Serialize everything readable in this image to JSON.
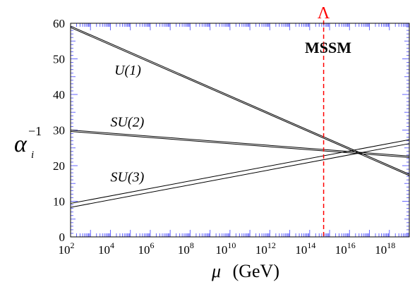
{
  "chart_data": {
    "type": "line",
    "title": "",
    "model_label": "MSSM",
    "xlabel": {
      "symbol": "μ",
      "unit": "(GeV)"
    },
    "ylabel": {
      "symbol": "α",
      "subscript": "i",
      "superscript": "−1"
    },
    "x_scale": "log10",
    "xlim_exponent": [
      2,
      19
    ],
    "ylim": [
      0,
      60
    ],
    "x_ticks": [
      {
        "base": "10",
        "exp": "2",
        "value": 2
      },
      {
        "base": "10",
        "exp": "4",
        "value": 4
      },
      {
        "base": "10",
        "exp": "6",
        "value": 6
      },
      {
        "base": "10",
        "exp": "8",
        "value": 8
      },
      {
        "base": "10",
        "exp": "10",
        "value": 10
      },
      {
        "base": "10",
        "exp": "12",
        "value": 12
      },
      {
        "base": "10",
        "exp": "14",
        "value": 14
      },
      {
        "base": "10",
        "exp": "16",
        "value": 16
      },
      {
        "base": "10",
        "exp": "18",
        "value": 18
      }
    ],
    "y_ticks": [
      "0",
      "10",
      "20",
      "30",
      "40",
      "50",
      "60"
    ],
    "series": [
      {
        "name": "U(1)",
        "lines": [
          {
            "points": [
              [
                2,
                58.8
              ],
              [
                19,
                17.2
              ]
            ]
          },
          {
            "points": [
              [
                2,
                59.2
              ],
              [
                19,
                17.6
              ]
            ]
          }
        ]
      },
      {
        "name": "SU(2)",
        "lines": [
          {
            "points": [
              [
                2,
                29.6
              ],
              [
                19,
                22.3
              ]
            ]
          },
          {
            "points": [
              [
                2,
                30.0
              ],
              [
                19,
                22.7
              ]
            ]
          }
        ]
      },
      {
        "name": "SU(3)",
        "lines": [
          {
            "points": [
              [
                2,
                8.3
              ],
              [
                19,
                26.2
              ]
            ]
          },
          {
            "points": [
              [
                2,
                9.4
              ],
              [
                19,
                27.3
              ]
            ]
          }
        ]
      }
    ],
    "curve_labels": [
      {
        "text": "U(1)",
        "at": [
          4.2,
          45.5
        ]
      },
      {
        "text": "SU(2)",
        "at": [
          4.0,
          31.0
        ]
      },
      {
        "text": "SU(3)",
        "at": [
          4.0,
          15.5
        ]
      }
    ],
    "marker": {
      "label": "Λ",
      "x": 14.7,
      "color": "#ff0000",
      "style": "dashed"
    },
    "colors": {
      "curves": "#000000",
      "axis_ticks": "#6666ff",
      "frame": "#000000"
    }
  }
}
